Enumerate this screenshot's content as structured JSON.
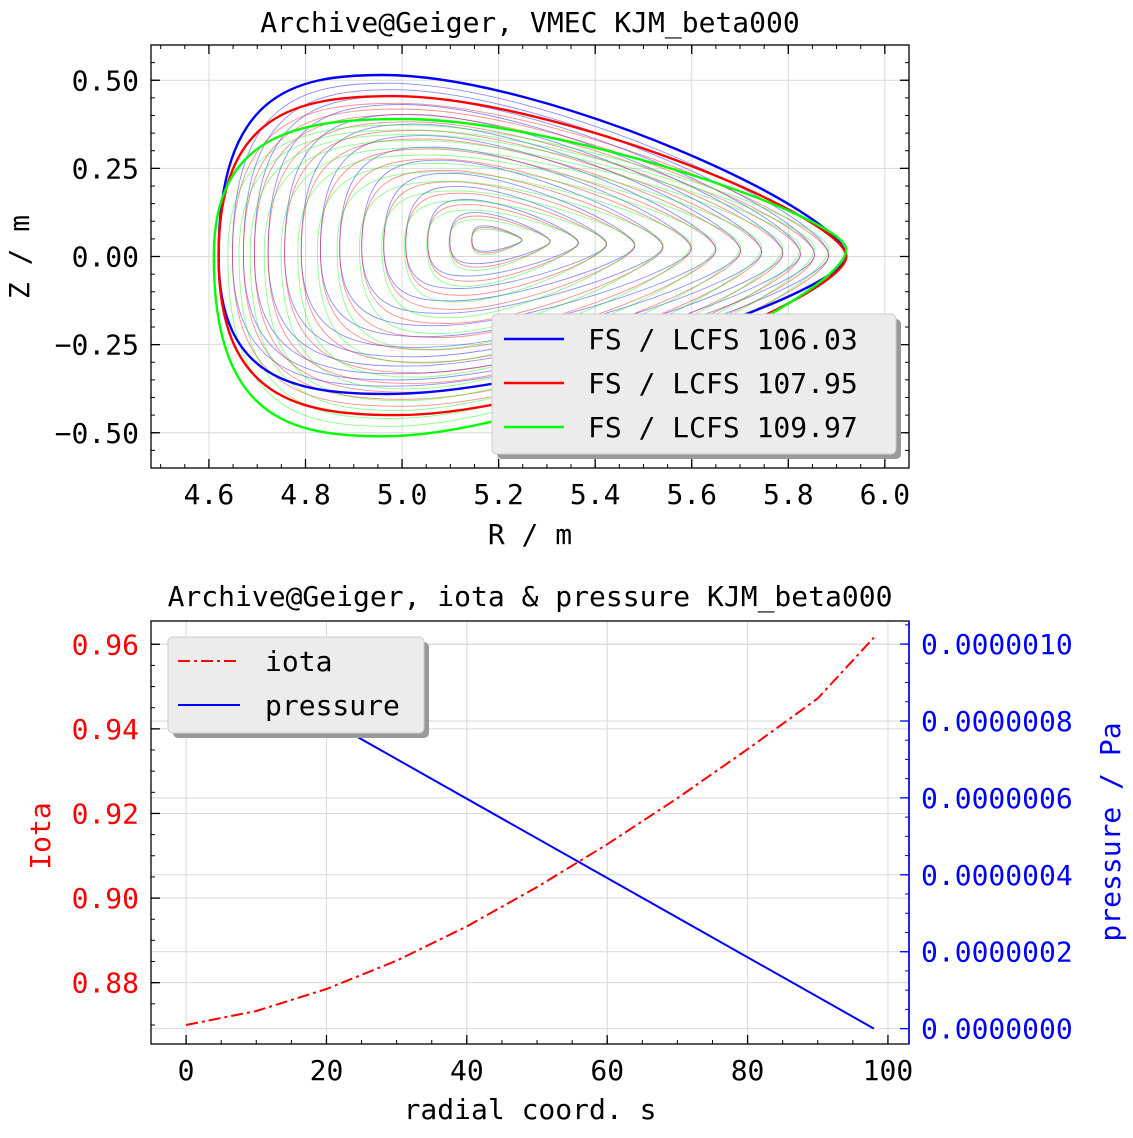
{
  "chart_data": [
    {
      "type": "line",
      "title": "Archive@Geiger, VMEC KJM_beta000",
      "xlabel": "R / m",
      "ylabel": "Z / m",
      "xlim": [
        4.48,
        6.05
      ],
      "ylim": [
        -0.6,
        0.6
      ],
      "xticks": [
        "4.6",
        "4.8",
        "5.0",
        "5.2",
        "5.4",
        "5.6",
        "5.8",
        "6.0"
      ],
      "yticks": [
        "0.50",
        "0.25",
        "0.00",
        "−0.25",
        "−0.50"
      ],
      "grid": true,
      "legend_position": "lower-right",
      "magnetic_axis": [
        5.19,
        0.05
      ],
      "series": [
        {
          "name": "FS / LCFS 106.03",
          "color": "#0000ff",
          "shape": {
            "r_in": 4.62,
            "r_out": 5.92,
            "r_top": 4.96,
            "z_top": 0.515,
            "r_bot": 4.97,
            "z_bot": -0.39,
            "r_tip": 5.92,
            "z_tip": 0.0
          }
        },
        {
          "name": "FS / LCFS 107.95",
          "color": "#ff0000",
          "shape": {
            "r_in": 4.62,
            "r_out": 5.92,
            "r_top": 4.98,
            "z_top": 0.455,
            "r_bot": 4.99,
            "z_bot": -0.45,
            "r_tip": 5.92,
            "z_tip": 0.0
          }
        },
        {
          "name": "FS / LCFS 109.97",
          "color": "#00ff00",
          "shape": {
            "r_in": 4.61,
            "r_out": 5.92,
            "r_top": 5.0,
            "z_top": 0.39,
            "r_bot": 4.96,
            "z_bot": -0.51,
            "r_tip": 5.92,
            "z_tip": 0.02
          }
        }
      ]
    },
    {
      "type": "line",
      "title": "Archive@Geiger, iota & pressure KJM_beta000",
      "xlabel": "radial coord. s",
      "ylabel": "Iota",
      "y2label": "pressure / Pa",
      "xlim": [
        -5,
        103
      ],
      "ylim": [
        0.8655,
        0.9655
      ],
      "y2lim": [
        -4e-08,
        1.06e-06
      ],
      "xticks": [
        "0",
        "20",
        "40",
        "60",
        "80",
        "100"
      ],
      "yticks": [
        "0.96",
        "0.94",
        "0.92",
        "0.90",
        "0.88"
      ],
      "y2ticks": [
        "0.0000010",
        "0.0000008",
        "0.0000006",
        "0.0000004",
        "0.0000002",
        "0.0000000"
      ],
      "grid": true,
      "legend_position": "top-left",
      "series": [
        {
          "name": "iota",
          "color": "#ff0000",
          "axis": "left",
          "style": "dash-dot",
          "x": [
            0,
            10,
            20,
            30,
            40,
            50,
            60,
            70,
            80,
            90,
            98
          ],
          "y": [
            0.87,
            0.8733,
            0.8785,
            0.8852,
            0.8933,
            0.9026,
            0.9127,
            0.9236,
            0.9352,
            0.9472,
            0.9616
          ]
        },
        {
          "name": "pressure",
          "color": "#0000ff",
          "axis": "right",
          "style": "solid",
          "x": [
            0,
            98
          ],
          "y": [
            1.01e-06,
            0.0
          ]
        }
      ]
    }
  ]
}
